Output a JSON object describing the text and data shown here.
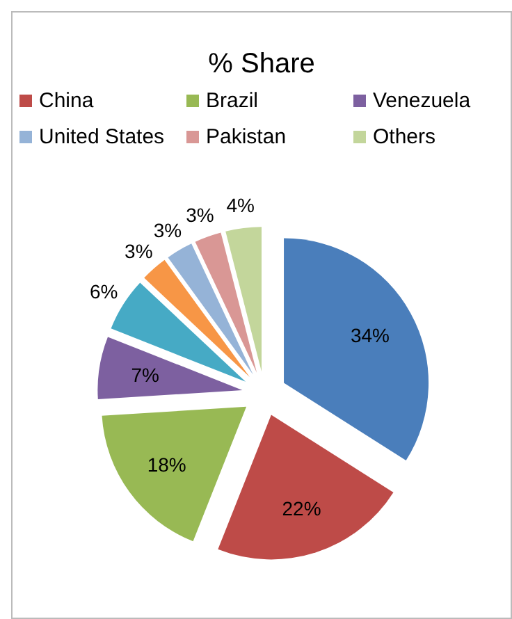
{
  "chart_data": {
    "type": "pie",
    "title": "% Share",
    "categories": [
      null,
      "China",
      "Brazil",
      "Venezuela",
      null,
      null,
      "United States",
      "Pakistan",
      "Others"
    ],
    "values": [
      34,
      22,
      18,
      7,
      6,
      3,
      3,
      3,
      4
    ],
    "value_labels": [
      "34%",
      "22%",
      "18%",
      "7%",
      "6%",
      "3%",
      "3%",
      "3%",
      "4%"
    ],
    "colors": [
      "#4a7ebb",
      "#be4b48",
      "#98b954",
      "#7d60a0",
      "#46aac5",
      "#f79646",
      "#95b3d7",
      "#d99795",
      "#c3d69b"
    ],
    "legend": "top"
  }
}
